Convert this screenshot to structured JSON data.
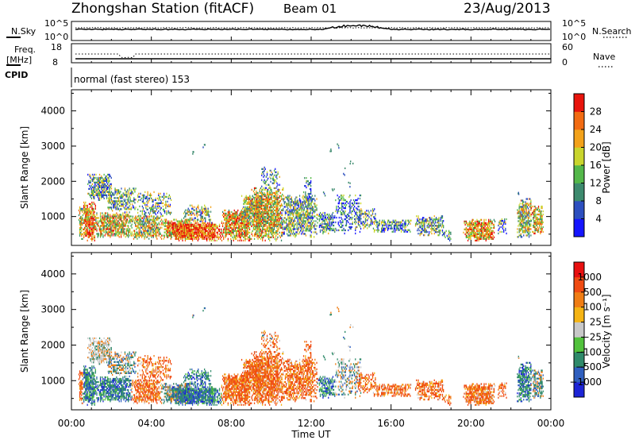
{
  "header": {
    "station": "Zhongshan Station (fitACF)",
    "beam": "Beam 01",
    "date": "23/Aug/2013"
  },
  "strip": {
    "nsky_label": "N.Sky",
    "nsky_ticks": [
      "10^5",
      "10^0"
    ],
    "nsearch_label": "N.Search",
    "nsearch_ticks": [
      "10^5",
      "10^0"
    ],
    "freq_label": "Freq.",
    "freq_unit": "[MHz]",
    "freq_ticks": [
      "18",
      "8"
    ],
    "nave_label": "Nave",
    "nave_ticks": [
      "60",
      "0"
    ],
    "cpid_label": "CPID",
    "cpid_value": "normal (fast stereo) 153"
  },
  "chart_data": [
    {
      "type": "heatmap",
      "name": "power",
      "ylabel": "Slant Range [km]",
      "xlabel": "Time UT",
      "xlim": [
        0,
        24
      ],
      "ylim": [
        180,
        4600
      ],
      "x_ticks": [
        "00:00",
        "04:00",
        "08:00",
        "12:00",
        "16:00",
        "20:00",
        "00:00"
      ],
      "y_ticks": [
        "1000",
        "2000",
        "3000",
        "4000"
      ],
      "colorbar": {
        "label": "Power [dB]",
        "ticks": [
          "4",
          "8",
          "12",
          "16",
          "20",
          "24",
          "28"
        ],
        "range": [
          0,
          32
        ],
        "colors": [
          "#1515ff",
          "#2d4fbf",
          "#3d8a6e",
          "#54b84a",
          "#c9d52d",
          "#f3a21a",
          "#f26b12",
          "#e8140c"
        ]
      }
    },
    {
      "type": "heatmap",
      "name": "velocity",
      "ylabel": "Slant Range [km]",
      "xlabel": "Time UT",
      "xlim": [
        0,
        24
      ],
      "ylim": [
        180,
        4600
      ],
      "x_ticks": [
        "00:00",
        "04:00",
        "08:00",
        "12:00",
        "16:00",
        "20:00",
        "00:00"
      ],
      "y_ticks": [
        "1000",
        "2000",
        "3000",
        "4000"
      ],
      "colorbar": {
        "label": "Velocity [m s⁻¹]",
        "ticks": [
          "1000",
          "500",
          "100",
          "25",
          "−25",
          "−100",
          "−500",
          "−1000"
        ],
        "colors": [
          "#1c24d6",
          "#2f5fbf",
          "#2f8a6a",
          "#52c23c",
          "#c8c8c8",
          "#f5b414",
          "#f07d14",
          "#f04b12",
          "#e81010"
        ]
      }
    }
  ]
}
